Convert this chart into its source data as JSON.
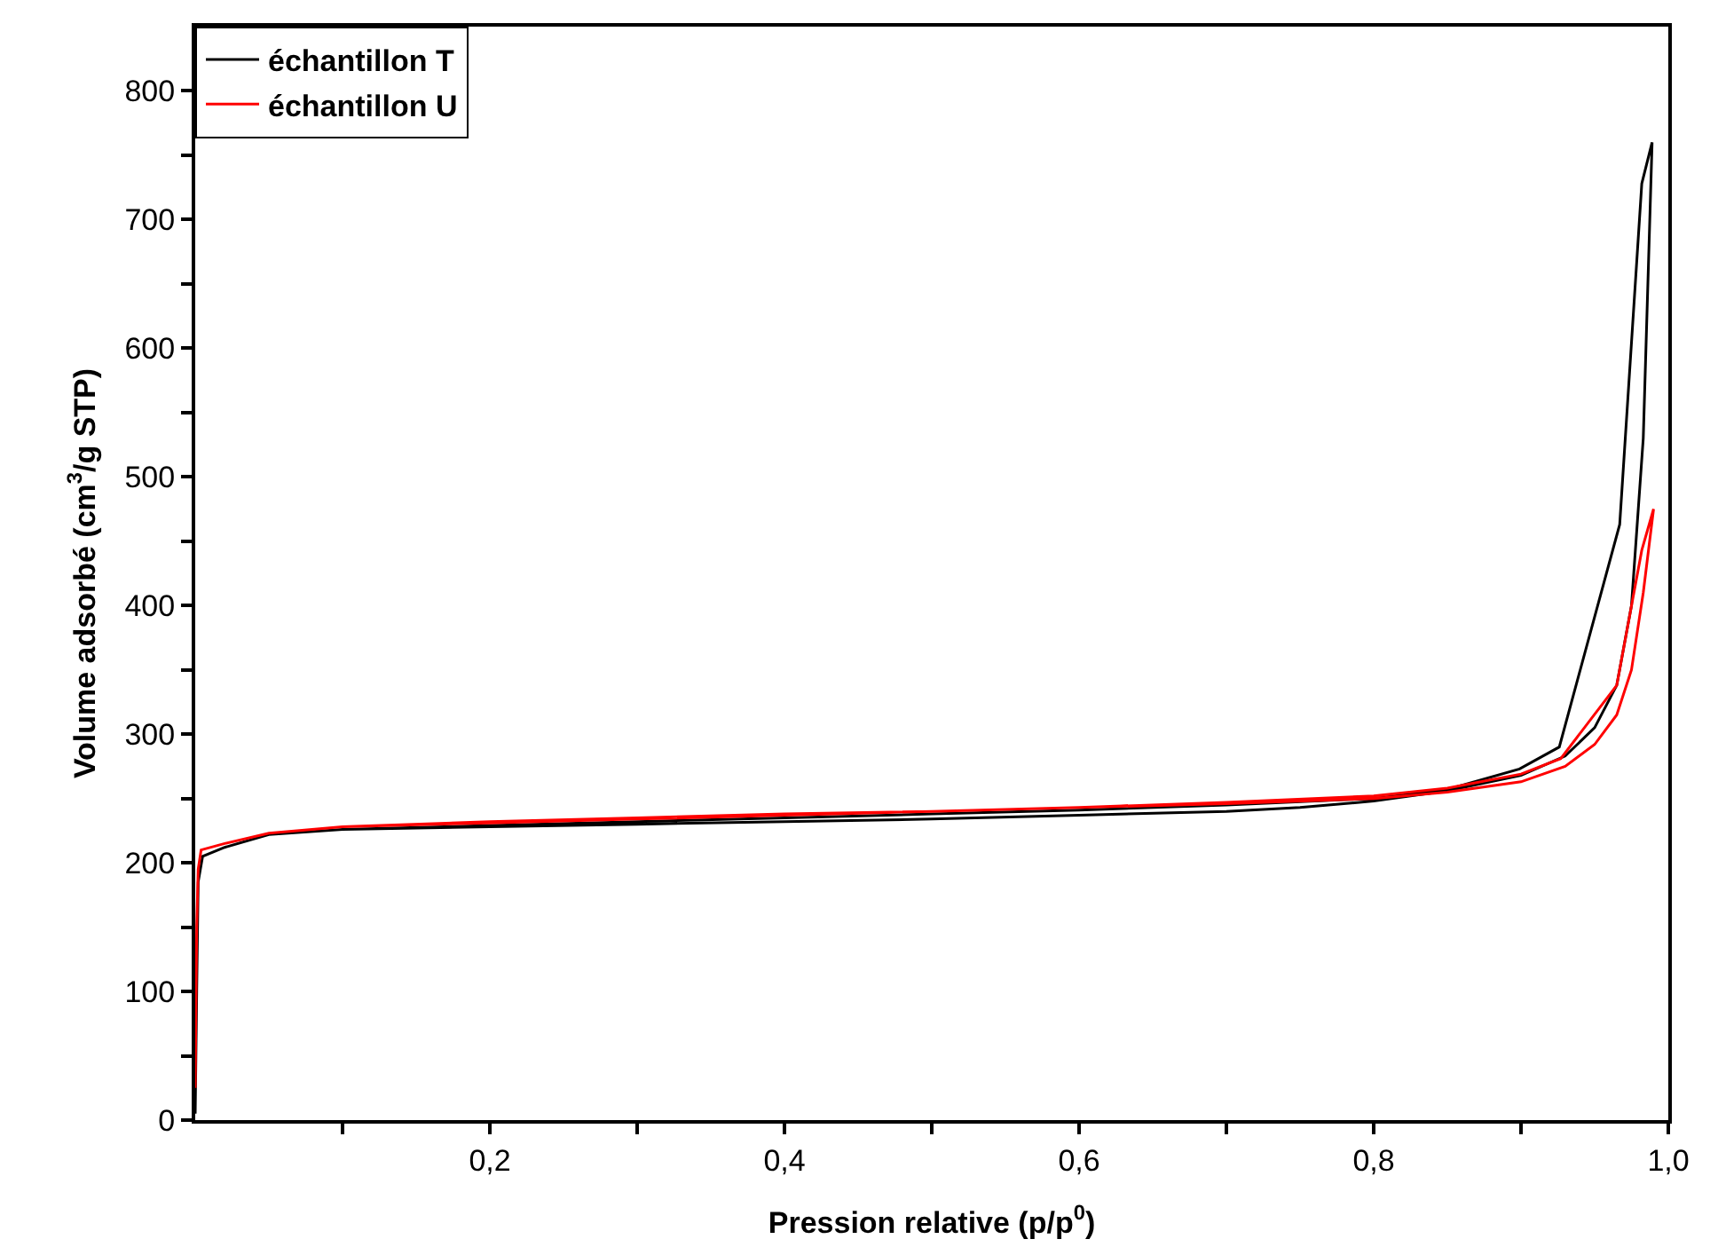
{
  "chart_data": {
    "type": "line",
    "xlabel": "Pression relative (p/p$^{0}$)",
    "ylabel": "Volume adsorbé (cm$^{3}$/g STP)",
    "series": [
      {
        "name": "échantillon T",
        "color": "#000000",
        "x": [
          0.0,
          0.001,
          0.002,
          0.005,
          0.02,
          0.05,
          0.1,
          0.2,
          0.3,
          0.4,
          0.5,
          0.6,
          0.7,
          0.75,
          0.8,
          0.85,
          0.9,
          0.93,
          0.95,
          0.965,
          0.975,
          0.983,
          0.989,
          0.982,
          0.967,
          0.926,
          0.899,
          0.85,
          0.8,
          0.7,
          0.6,
          0.5,
          0.4,
          0.3,
          0.2,
          0.1
        ],
        "values": [
          5,
          100,
          185,
          205,
          212,
          222,
          226,
          228,
          230,
          232,
          234,
          237,
          240,
          243,
          248,
          256,
          268,
          283,
          305,
          338,
          400,
          530,
          760,
          728,
          463,
          290,
          273,
          257,
          250,
          245,
          241,
          238,
          235,
          232,
          229,
          226
        ]
      },
      {
        "name": "échantillon U",
        "color": "#ff0000",
        "x": [
          0.0,
          0.001,
          0.002,
          0.004,
          0.02,
          0.05,
          0.1,
          0.2,
          0.3,
          0.4,
          0.5,
          0.6,
          0.7,
          0.8,
          0.85,
          0.9,
          0.93,
          0.95,
          0.965,
          0.975,
          0.983,
          0.99,
          0.982,
          0.965,
          0.927,
          0.9,
          0.85,
          0.8,
          0.7,
          0.6,
          0.5,
          0.4,
          0.3,
          0.2,
          0.1
        ],
        "values": [
          25,
          150,
          195,
          210,
          215,
          223,
          228,
          232,
          235,
          238,
          240,
          243,
          246,
          250,
          255,
          263,
          275,
          292,
          315,
          350,
          410,
          475,
          443,
          338,
          281,
          269,
          258,
          252,
          247,
          243,
          240,
          237,
          234,
          231,
          228
        ]
      }
    ],
    "xlim": [
      0,
      1.0
    ],
    "xticks": [
      {
        "value": 0.1,
        "label": null
      },
      {
        "value": 0.2,
        "label": "0,2"
      },
      {
        "value": 0.3,
        "label": null
      },
      {
        "value": 0.4,
        "label": "0,4"
      },
      {
        "value": 0.5,
        "label": null
      },
      {
        "value": 0.6,
        "label": "0,6"
      },
      {
        "value": 0.7,
        "label": null
      },
      {
        "value": 0.8,
        "label": "0,8"
      },
      {
        "value": 0.9,
        "label": null
      },
      {
        "value": 1.0,
        "label": "1,0"
      }
    ],
    "ylim": [
      0,
      850
    ],
    "yticks": [
      0,
      {
        "value": 50,
        "label": null
      },
      100,
      {
        "value": 150,
        "label": null
      },
      200,
      {
        "value": 250,
        "label": null
      },
      300,
      {
        "value": 350,
        "label": null
      },
      400,
      {
        "value": 450,
        "label": null
      },
      500,
      {
        "value": 550,
        "label": null
      },
      600,
      {
        "value": 650,
        "label": null
      },
      700,
      {
        "value": 750,
        "label": null
      },
      800
    ],
    "legend": "top left",
    "marker": "none",
    "line_style": "solid"
  }
}
